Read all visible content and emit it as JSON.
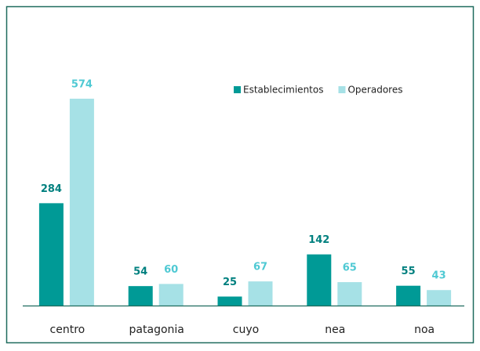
{
  "chart_data": {
    "type": "bar",
    "categories": [
      "centro",
      "patagonia",
      "cuyo",
      "nea",
      "noa"
    ],
    "series": [
      {
        "name": "Establecimientos",
        "color": "#009a96",
        "values": [
          284,
          54,
          25,
          142,
          55
        ]
      },
      {
        "name": "Operadores",
        "color": "#a6e1e6",
        "values": [
          574,
          60,
          67,
          65,
          43
        ]
      }
    ],
    "ylim": [
      0,
      600
    ],
    "legend": "top-right"
  }
}
